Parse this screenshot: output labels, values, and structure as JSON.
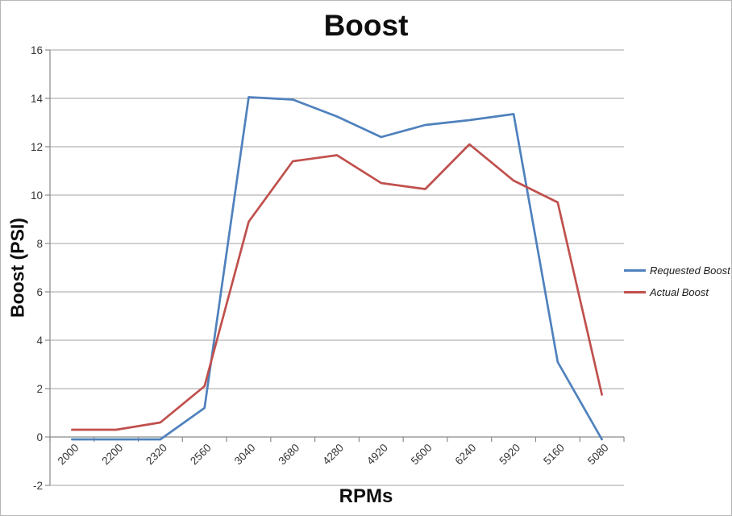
{
  "chart_data": {
    "type": "line",
    "title": "Boost",
    "xlabel": "RPMs",
    "ylabel": "Boost (PSI)",
    "categories": [
      "2000",
      "2200",
      "2320",
      "2560",
      "3040",
      "3680",
      "4280",
      "4920",
      "5600",
      "6240",
      "5920",
      "5160",
      "5080"
    ],
    "series": [
      {
        "name": "Requested Boost",
        "color": "#4F81BD",
        "values": [
          -0.1,
          -0.1,
          -0.1,
          1.2,
          14.05,
          13.95,
          13.25,
          12.4,
          12.9,
          13.1,
          13.35,
          3.1,
          -0.1
        ]
      },
      {
        "name": "Actual Boost",
        "color": "#C0504D",
        "values": [
          0.3,
          0.3,
          0.6,
          2.1,
          8.9,
          11.4,
          11.65,
          10.5,
          10.25,
          12.1,
          10.6,
          9.7,
          1.75
        ]
      }
    ],
    "ylim": [
      -2,
      16
    ],
    "y_ticks": [
      16,
      14,
      12,
      10,
      8,
      6,
      4,
      2,
      0,
      -2
    ],
    "grid": true,
    "legend_position": "right",
    "colors": {
      "gridline": "#a0a0a0",
      "axis": "#8a8a8a",
      "tick_text": "#363636",
      "title_text": "#0e0e0e"
    }
  }
}
